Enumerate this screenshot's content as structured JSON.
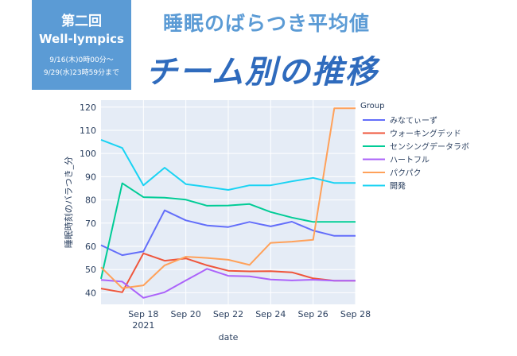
{
  "badge": {
    "line1": "第二回",
    "line2": "Well-lympics",
    "line3": "9/16(木)0時00分～",
    "line4": "9/29(水)23時59分まで"
  },
  "header": {
    "title_line1": "睡眠のばらつき平均値",
    "title_line2": "チーム別の推移"
  },
  "chart_data": {
    "type": "line",
    "xlabel": "date",
    "ylabel": "睡眠時刻のバラつき_分",
    "xlim": [
      "2021-09-16",
      "2021-09-28"
    ],
    "ylim": [
      35,
      123
    ],
    "yticks": [
      40,
      50,
      60,
      70,
      80,
      90,
      100,
      110,
      120
    ],
    "xticks": [
      {
        "date": "2021-09-18",
        "label": "Sep 18",
        "sublabel": "2021"
      },
      {
        "date": "2021-09-20",
        "label": "Sep 20",
        "sublabel": ""
      },
      {
        "date": "2021-09-22",
        "label": "Sep 22",
        "sublabel": ""
      },
      {
        "date": "2021-09-24",
        "label": "Sep 24",
        "sublabel": ""
      },
      {
        "date": "2021-09-26",
        "label": "Sep 26",
        "sublabel": ""
      },
      {
        "date": "2021-09-28",
        "label": "Sep 28",
        "sublabel": ""
      }
    ],
    "x": [
      "2021-09-16",
      "2021-09-17",
      "2021-09-18",
      "2021-09-19",
      "2021-09-20",
      "2021-09-21",
      "2021-09-22",
      "2021-09-23",
      "2021-09-24",
      "2021-09-25",
      "2021-09-26",
      "2021-09-27",
      "2021-09-28"
    ],
    "grid": true,
    "legend_title": "Group",
    "legend_position": "right",
    "series": [
      {
        "name": "みなてぃーず",
        "color": "#636efa",
        "values": [
          60.5,
          56.2,
          57.8,
          75.5,
          71.2,
          69.0,
          68.3,
          70.5,
          68.6,
          70.6,
          66.8,
          64.5,
          64.5
        ]
      },
      {
        "name": "ウォーキングデッド",
        "color": "#ef553b",
        "values": [
          41.8,
          40.2,
          57.0,
          53.8,
          54.8,
          51.8,
          49.5,
          49.2,
          49.3,
          48.8,
          46.2,
          45.2,
          45.2
        ]
      },
      {
        "name": "センシングデータラボ",
        "color": "#00cc96",
        "values": [
          46.0,
          87.2,
          81.2,
          81.0,
          80.1,
          77.5,
          77.6,
          78.2,
          74.8,
          72.4,
          70.5,
          70.5,
          70.5
        ]
      },
      {
        "name": "ハートフル",
        "color": "#ab63fa",
        "values": [
          45.5,
          44.8,
          37.8,
          40.2,
          45.3,
          50.3,
          47.3,
          47.1,
          45.7,
          45.3,
          45.6,
          45.2,
          45.2
        ]
      },
      {
        "name": "パクパク",
        "color": "#ffa15a",
        "values": [
          51.0,
          42.0,
          43.2,
          51.8,
          55.5,
          55.0,
          54.2,
          52.0,
          61.5,
          62.0,
          62.8,
          119.5,
          119.5
        ]
      },
      {
        "name": "開発",
        "color": "#19d3f3",
        "values": [
          105.9,
          102.4,
          86.3,
          93.9,
          86.8,
          85.6,
          84.3,
          86.3,
          86.3,
          88.0,
          89.5,
          87.3,
          87.3
        ]
      }
    ]
  }
}
